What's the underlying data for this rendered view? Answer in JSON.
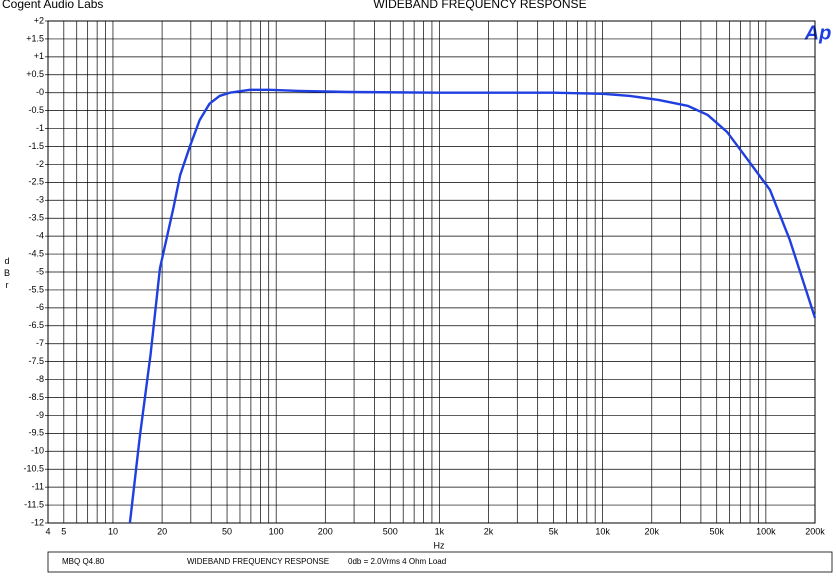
{
  "chart_data": {
    "type": "line",
    "title": "WIDEBAND  FREQUENCY  RESPONSE",
    "header_left": "Cogent Audio Labs",
    "logo": "Ap",
    "ylabel": "dBr",
    "xlabel": "Hz",
    "footer": [
      "MBQ Q4.80",
      "WIDEBAND FREQUENCY RESPONSE",
      "0db = 2.0Vrms   4 Ohm Load"
    ],
    "xscale": "log",
    "grid": true,
    "xlim": [
      4,
      200000
    ],
    "ylim": [
      -12,
      2
    ],
    "xticks": [
      4,
      5,
      10,
      20,
      50,
      100,
      200,
      500,
      {
        "value": 1000,
        "label": "1k"
      },
      {
        "value": 2000,
        "label": "2k"
      },
      {
        "value": 5000,
        "label": "5k"
      },
      {
        "value": 10000,
        "label": "10k"
      },
      {
        "value": 20000,
        "label": "20k"
      },
      {
        "value": 50000,
        "label": "50k"
      },
      {
        "value": 100000,
        "label": "100k"
      },
      {
        "value": 200000,
        "label": "200k"
      }
    ],
    "x_minor_grid": [
      6,
      7,
      8,
      9,
      30,
      40,
      60,
      70,
      80,
      90,
      300,
      400,
      600,
      700,
      800,
      900,
      3000,
      4000,
      6000,
      7000,
      8000,
      9000,
      30000,
      40000,
      60000,
      70000,
      80000,
      90000
    ],
    "yticks": [
      {
        "value": 2,
        "label": "+2"
      },
      {
        "value": 1.5,
        "label": "+1.5"
      },
      {
        "value": 1,
        "label": "+1"
      },
      {
        "value": 0.5,
        "label": "+0.5"
      },
      {
        "value": 0,
        "label": "-0"
      },
      -0.5,
      -1,
      -1.5,
      -2,
      -2.5,
      -3,
      -3.5,
      -4,
      -4.5,
      -5,
      -5.5,
      -6,
      -6.5,
      -7,
      -7.5,
      -8,
      -8.5,
      -9,
      -9.5,
      -10,
      -10.5,
      -11,
      -11.5,
      -12
    ],
    "series": [
      {
        "color": "#1f3fe0",
        "x": [
          12.7,
          14.6,
          17,
          19.4,
          23.5,
          25.8,
          29.8,
          34,
          39,
          45,
          52,
          69,
          91,
          138,
          281,
          1000,
          5000,
          10000,
          14700,
          22000,
          33400,
          44000,
          58000,
          76000,
          106000,
          140000,
          200000
        ],
        "values": [
          -12,
          -9.6,
          -7.3,
          -4.9,
          -3.2,
          -2.3,
          -1.46,
          -0.76,
          -0.31,
          -0.09,
          0,
          0.08,
          0.08,
          0.05,
          0.02,
          0,
          0,
          -0.03,
          -0.09,
          -0.2,
          -0.37,
          -0.62,
          -1.1,
          -1.82,
          -2.71,
          -4.1,
          -6.28
        ]
      }
    ]
  }
}
